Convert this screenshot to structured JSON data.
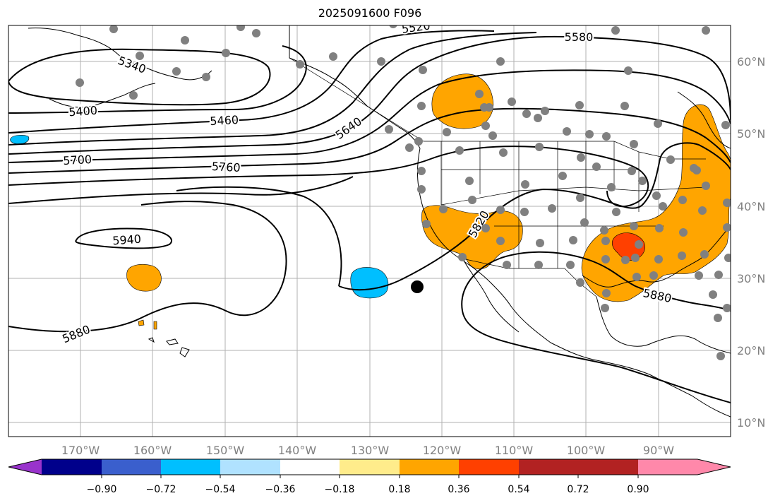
{
  "title": "2025091600 F096",
  "map": {
    "projection": "equirectangular",
    "lon_range": [
      -180,
      -80
    ],
    "lat_range": [
      7,
      65
    ],
    "lon_gridlines": [
      -170,
      -160,
      -150,
      -140,
      -130,
      -120,
      -110,
      -100,
      -90
    ],
    "lat_gridlines": [
      10,
      20,
      30,
      40,
      50,
      60
    ],
    "lon_labels": [
      "170°W",
      "160°W",
      "150°W",
      "140°W",
      "130°W",
      "120°W",
      "110°W",
      "100°W",
      "90°W"
    ],
    "lat_labels": [
      "10°N",
      "20°N",
      "30°N",
      "40°N",
      "50°N",
      "60°N"
    ],
    "contour_labels": [
      "5340",
      "5400",
      "5460",
      "5520",
      "5580",
      "5640",
      "5700",
      "5760",
      "5820",
      "5880",
      "5880",
      "5940"
    ],
    "station_marker_color": "#808080",
    "special_marker_color": "#000000"
  },
  "colorbar": {
    "colors": [
      "#9933cc",
      "#00008b",
      "#3a5fcd",
      "#00bfff",
      "#b0e2ff",
      "#ffffff",
      "#ffec8b",
      "#ffa500",
      "#ff4000",
      "#b22222",
      "#ff88aa"
    ],
    "ticks": [
      "−0.90",
      "−0.72",
      "−0.54",
      "−0.36",
      "−0.18",
      "0.18",
      "0.36",
      "0.54",
      "0.72",
      "0.90"
    ]
  }
}
